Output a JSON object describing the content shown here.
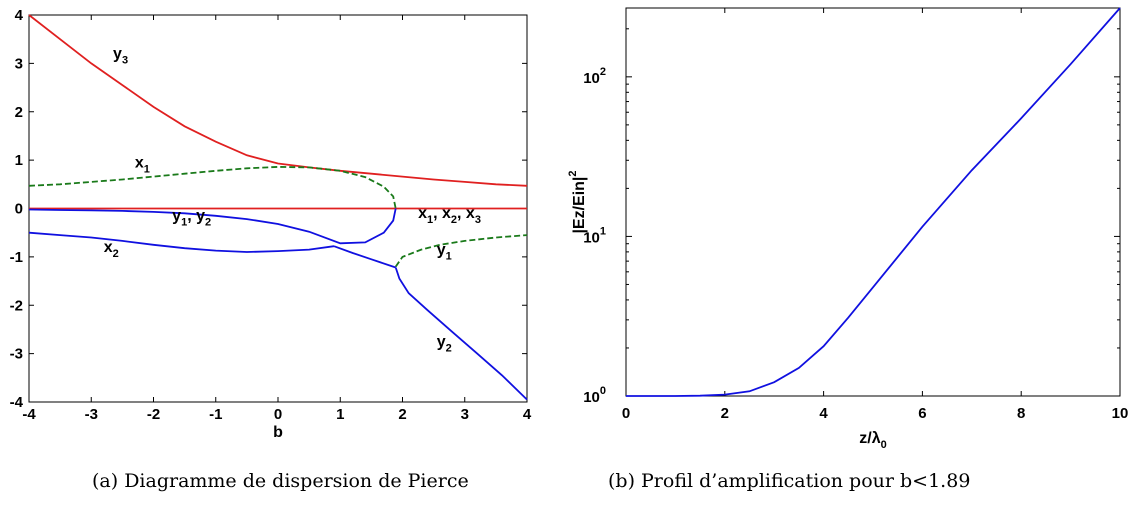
{
  "charts": [
    {
      "caption": "(a) Diagramme de dispersion de Pierce",
      "chart_data": {
        "type": "line",
        "xlabel": "b",
        "ylabel": "",
        "xlim": [
          -4,
          4
        ],
        "ylim": [
          -4,
          4
        ],
        "xticks": [
          "-4",
          "-3",
          "-2",
          "-1",
          "0",
          "1",
          "2",
          "3",
          "4"
        ],
        "yticks": [
          "4",
          "3",
          "2",
          "1",
          "0",
          "-1",
          "-2",
          "-3",
          "-4"
        ],
        "grid": false,
        "series": [
          {
            "color": "#e02020",
            "style": "solid",
            "x": [
              -4,
              -3.5,
              -3,
              -2.5,
              -2,
              -1.5,
              -1,
              -0.5,
              0,
              0.5,
              1,
              1.5,
              2,
              2.5,
              3,
              3.5,
              4
            ],
            "y": [
              4.0,
              3.5,
              3.0,
              2.55,
              2.1,
              1.7,
              1.38,
              1.1,
              0.93,
              0.85,
              0.78,
              0.72,
              0.66,
              0.6,
              0.55,
              0.5,
              0.47
            ]
          },
          {
            "color": "#e02020",
            "style": "solid",
            "x": [
              -4,
              4
            ],
            "y": [
              0,
              0
            ]
          },
          {
            "color": "#1a7a1a",
            "style": "dashed",
            "x": [
              -4,
              -3.5,
              -3,
              -2.5,
              -2,
              -1.5,
              -1,
              -0.5,
              0,
              0.5,
              1.0,
              1.4,
              1.7,
              1.85,
              1.89
            ],
            "y": [
              0.47,
              0.5,
              0.55,
              0.6,
              0.66,
              0.72,
              0.78,
              0.83,
              0.86,
              0.85,
              0.78,
              0.65,
              0.45,
              0.25,
              0.0
            ]
          },
          {
            "color": "#1a7a1a",
            "style": "dashed",
            "x": [
              1.89,
              2.0,
              2.3,
              2.6,
              3.0,
              3.5,
              4
            ],
            "y": [
              -1.2,
              -1.0,
              -0.85,
              -0.75,
              -0.67,
              -0.6,
              -0.55
            ]
          },
          {
            "color": "#1010e0",
            "style": "solid",
            "x": [
              -4,
              -3.5,
              -3,
              -2.5,
              -2,
              -1.5,
              -1,
              -0.5,
              0,
              0.5,
              1.0,
              1.4,
              1.7,
              1.85,
              1.89
            ],
            "y": [
              -0.02,
              -0.03,
              -0.04,
              -0.05,
              -0.07,
              -0.1,
              -0.15,
              -0.22,
              -0.32,
              -0.48,
              -0.72,
              -0.7,
              -0.5,
              -0.25,
              0.0
            ]
          },
          {
            "color": "#1010e0",
            "style": "solid",
            "x": [
              -4,
              -3.5,
              -3,
              -2.5,
              -2,
              -1.5,
              -1,
              -0.5,
              0,
              0.5,
              0.9
            ],
            "y": [
              -0.5,
              -0.55,
              -0.6,
              -0.67,
              -0.75,
              -0.82,
              -0.87,
              -0.9,
              -0.88,
              -0.85,
              -0.78
            ]
          },
          {
            "color": "#1010e0",
            "style": "solid",
            "x": [
              0.9,
              1.2,
              1.5,
              1.89
            ],
            "y": [
              -0.78,
              -0.92,
              -1.05,
              -1.22
            ]
          },
          {
            "color": "#1010e0",
            "style": "solid",
            "x": [
              1.89,
              1.95,
              2.1,
              2.4,
              2.8,
              3.2,
              3.6,
              4
            ],
            "y": [
              -1.22,
              -1.45,
              -1.75,
              -2.1,
              -2.55,
              -3.0,
              -3.45,
              -3.95
            ]
          }
        ],
        "annotations": [
          {
            "name": "y",
            "sub": "3",
            "x": -2.65,
            "y": 3.1
          },
          {
            "name": "x",
            "sub": "1",
            "x": -2.3,
            "y": 0.85
          },
          {
            "name": "y",
            "sub": "1",
            "extra": ", y",
            "sub2": "2",
            "x": -1.7,
            "y": -0.25
          },
          {
            "name": "x",
            "sub": "1",
            "extra": ", x",
            "sub2": "2",
            "extra2": ", x",
            "sub3": "3",
            "x": 2.25,
            "y": -0.2
          },
          {
            "name": "x",
            "sub": "2",
            "x": -2.8,
            "y": -0.9
          },
          {
            "name": "y",
            "sub": "1",
            "x": 2.55,
            "y": -0.95
          },
          {
            "name": "y",
            "sub": "2",
            "x": 2.55,
            "y": -2.85
          }
        ]
      }
    },
    {
      "caption": "(b) Profil d’amplification pour b<1.89",
      "chart_data": {
        "type": "line",
        "xlabel": "z/λ",
        "xlabel_sub": "0",
        "ylabel": "|Ez/Ein|",
        "ylabel_sup": "2",
        "xlim": [
          0,
          10
        ],
        "ylim": [
          1,
          270
        ],
        "yscale": "log",
        "xticks": [
          "0",
          "2",
          "4",
          "6",
          "8",
          "10"
        ],
        "yticks": [
          {
            "base": "10",
            "exp": "0",
            "value": 1
          },
          {
            "base": "10",
            "exp": "1",
            "value": 10
          },
          {
            "base": "10",
            "exp": "2",
            "value": 100
          }
        ],
        "grid": false,
        "series": [
          {
            "color": "#1010e0",
            "style": "solid",
            "x": [
              0,
              1,
              1.5,
              2,
              2.5,
              3,
              3.5,
              4,
              4.5,
              5,
              6,
              7,
              8,
              9,
              10
            ],
            "y": [
              1.0,
              1.0,
              1.005,
              1.02,
              1.07,
              1.22,
              1.5,
              2.05,
              3.1,
              4.8,
              11.5,
              26,
              55,
              120,
              270
            ]
          }
        ]
      }
    }
  ]
}
